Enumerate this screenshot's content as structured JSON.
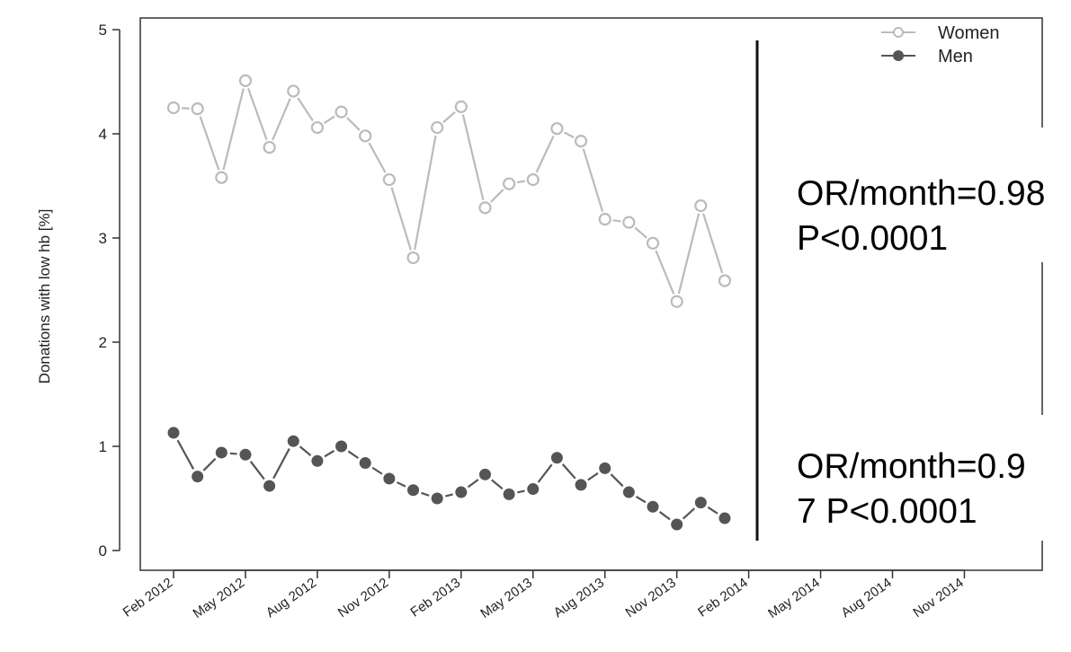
{
  "chart_data": {
    "type": "line",
    "title": "",
    "xlabel": "",
    "ylabel": "Donations with low hb [%]",
    "ylim": [
      0,
      5
    ],
    "y_ticks": [
      0,
      1,
      2,
      3,
      4,
      5
    ],
    "x_ticks": [
      "Feb 2012",
      "May 2012",
      "Aug 2012",
      "Nov 2012",
      "Feb 2013",
      "May 2013",
      "Aug 2013",
      "Nov 2013",
      "Feb 2014",
      "May 2014",
      "Aug 2014",
      "Nov 2014"
    ],
    "x_range": [
      "Feb 2012",
      "Nov 2014"
    ],
    "x": [
      "Feb 2012",
      "Mar 2012",
      "Apr 2012",
      "May 2012",
      "Jun 2012",
      "Jul 2012",
      "Aug 2012",
      "Sep 2012",
      "Oct 2012",
      "Nov 2012",
      "Dec 2012",
      "Jan 2013",
      "Feb 2013",
      "Mar 2013",
      "Apr 2013",
      "May 2013",
      "Jun 2013",
      "Jul 2013",
      "Aug 2013",
      "Sep 2013",
      "Oct 2013",
      "Nov 2013",
      "Dec 2013",
      "Jan 2014"
    ],
    "series": [
      {
        "name": "Women",
        "color": "#bbbbbb",
        "marker": "open-circle",
        "values": [
          4.25,
          4.24,
          3.58,
          4.51,
          3.87,
          4.41,
          4.06,
          4.21,
          3.98,
          3.56,
          2.81,
          4.06,
          4.26,
          3.29,
          3.52,
          3.56,
          4.05,
          3.93,
          3.18,
          3.15,
          2.95,
          2.39,
          3.31,
          2.59
        ]
      },
      {
        "name": "Men",
        "color": "#555555",
        "marker": "filled-circle",
        "values": [
          1.13,
          0.71,
          0.94,
          0.92,
          0.62,
          1.05,
          0.86,
          1.0,
          0.84,
          0.69,
          0.58,
          0.5,
          0.56,
          0.73,
          0.54,
          0.59,
          0.89,
          0.63,
          0.79,
          0.56,
          0.42,
          0.25,
          0.46,
          0.31
        ]
      }
    ],
    "legend_position": "top-right",
    "grid": false,
    "annotations": {
      "women_line1": "OR/month=0.98",
      "women_line2": "P<0.0001",
      "men_line1": "OR/month=0.9",
      "men_line2": "7 P<0.0001"
    }
  }
}
